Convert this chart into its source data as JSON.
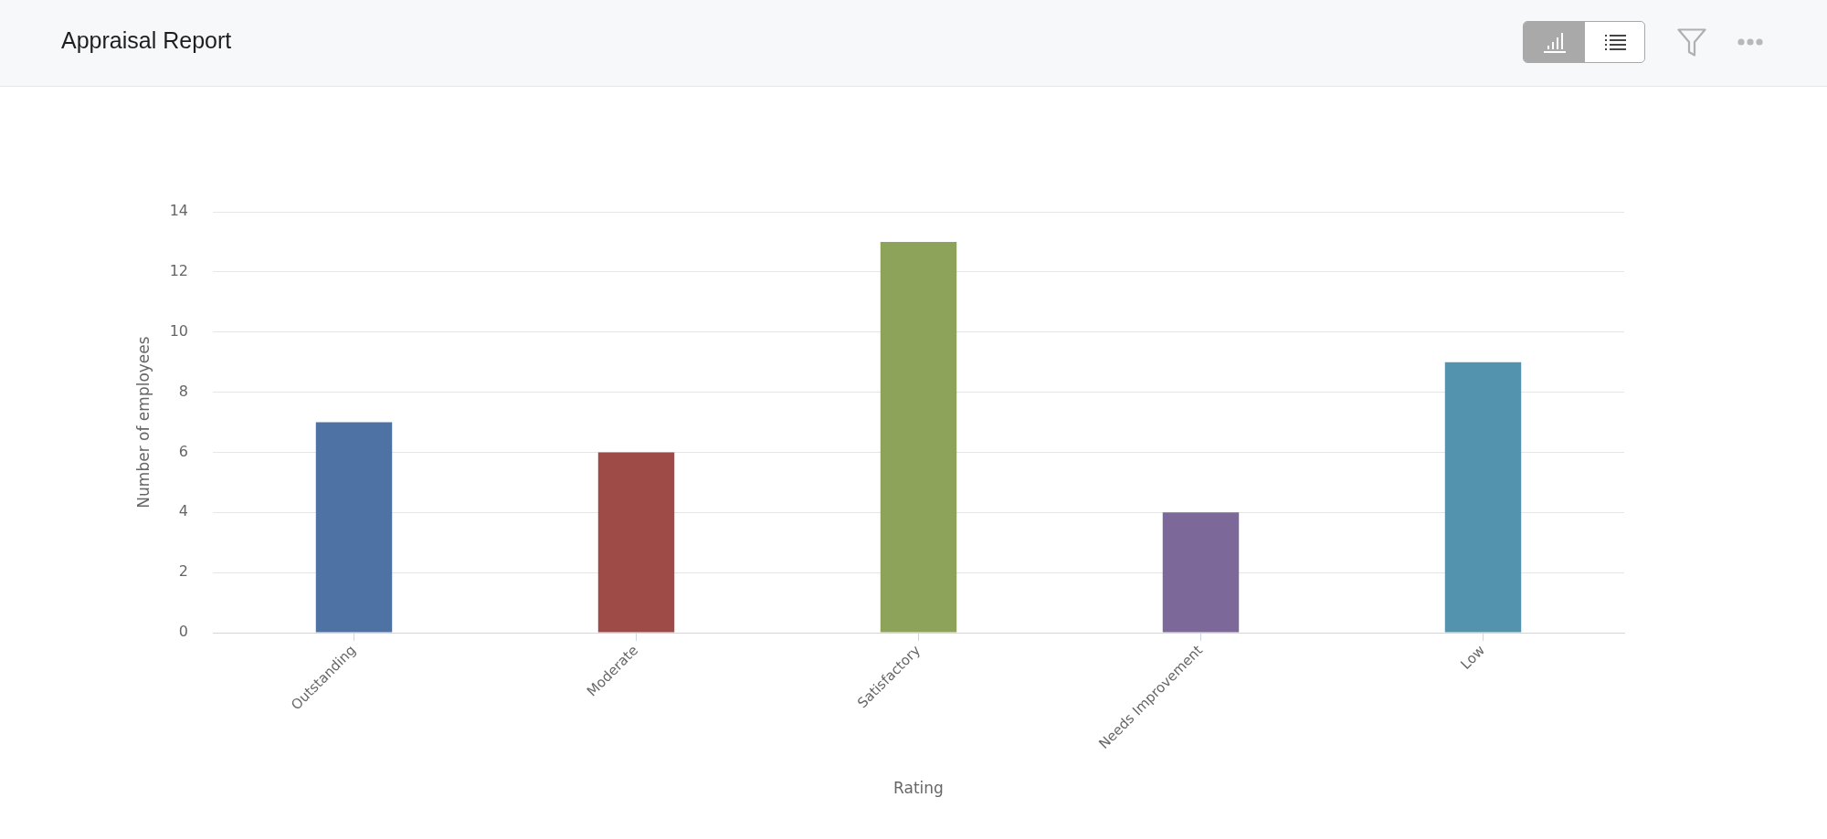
{
  "chart_data": {
    "type": "bar",
    "title": "Appraisal Report",
    "xlabel": "Rating",
    "ylabel": "Number of employees",
    "categories": [
      "Outstanding",
      "Moderate",
      "Satisfactory",
      "Needs Improvement",
      "Low"
    ],
    "values": [
      7,
      6,
      13,
      4,
      9
    ],
    "colors": [
      "#4e72a4",
      "#9e4b47",
      "#8da359",
      "#7c699a",
      "#5393ae"
    ],
    "ylim": [
      0,
      14
    ],
    "yticks": [
      0,
      2,
      4,
      6,
      8,
      10,
      12,
      14
    ],
    "grid": "y"
  }
}
